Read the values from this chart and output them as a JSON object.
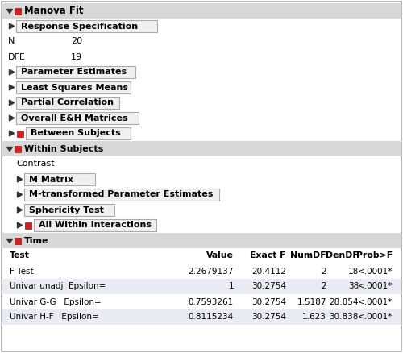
{
  "title": "Manova Fit",
  "bg_color": "#ffffff",
  "header_bg": "#d8d8d8",
  "section_bg": "#d8d8d8",
  "button_bg": "#f0f0f0",
  "button_border": "#aaaaaa",
  "outer_border": "#aaaaaa",
  "N": "20",
  "DFE": "19",
  "table_headers": [
    "Test",
    "Value",
    "Exact F",
    "NumDF",
    "DenDF",
    "Prob>F"
  ],
  "table_data": [
    [
      "F Test",
      "2.2679137",
      "20.4112",
      "2",
      "18",
      "<.0001*"
    ],
    [
      "Univar unadj  Epsilon=",
      "1",
      "30.2754",
      "2",
      "38",
      "<.0001*"
    ],
    [
      "Univar G-G   Epsilon=",
      "0.7593261",
      "30.2754",
      "1.5187",
      "28.854",
      "<.0001*"
    ],
    [
      "Univar H-F   Epsilon=",
      "0.8115234",
      "30.2754",
      "1.623",
      "30.838",
      "<.0001*"
    ]
  ],
  "row_alt_color": "#eaeaf2",
  "figwidth": 5.0,
  "figheight": 4.38,
  "dpi": 100
}
